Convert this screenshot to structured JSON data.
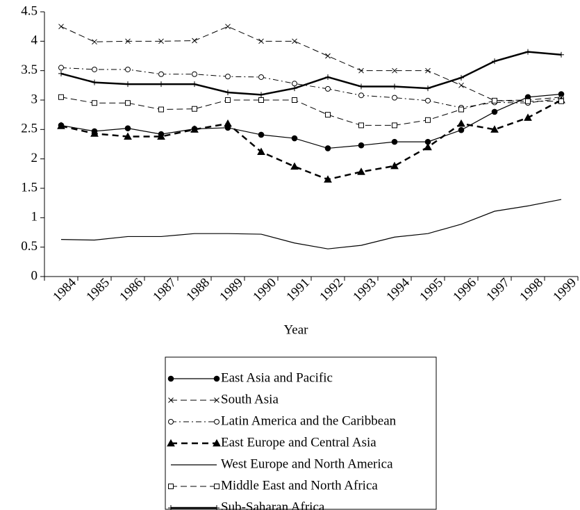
{
  "chart_data": {
    "type": "line",
    "x_label": "Year",
    "categories": [
      "1984",
      "1985",
      "1986",
      "1987",
      "1988",
      "1989",
      "1990",
      "1991",
      "1992",
      "1993",
      "1994",
      "1995",
      "1996",
      "1997",
      "1998",
      "1999"
    ],
    "ylim": [
      0,
      4.5
    ],
    "yticks": [
      0,
      0.5,
      1,
      1.5,
      2,
      2.5,
      3,
      3.5,
      4,
      4.5
    ],
    "series": [
      {
        "name": "East Asia and Pacific",
        "color": "#000000",
        "dash": "solid",
        "marker": "filled-circle",
        "line_width": 1.2,
        "values": [
          2.57,
          2.47,
          2.52,
          2.42,
          2.51,
          2.53,
          2.41,
          2.35,
          2.18,
          2.23,
          2.29,
          2.29,
          2.49,
          2.8,
          3.05,
          3.1
        ]
      },
      {
        "name": "South Asia",
        "color": "#000000",
        "dash": "dashed",
        "marker": "x",
        "line_width": 1,
        "values": [
          4.25,
          3.99,
          4.0,
          4.0,
          4.01,
          4.25,
          4.0,
          4.0,
          3.75,
          3.5,
          3.5,
          3.5,
          3.25,
          2.99,
          3.0,
          3.05
        ]
      },
      {
        "name": "Latin America and the Caribbean",
        "color": "#000000",
        "dash": "dash-dot",
        "marker": "open-circle",
        "line_width": 1,
        "values": [
          3.55,
          3.52,
          3.52,
          3.44,
          3.44,
          3.4,
          3.39,
          3.28,
          3.19,
          3.08,
          3.04,
          2.99,
          2.87,
          2.96,
          2.95,
          3.03
        ]
      },
      {
        "name": "East Europe and Central Asia",
        "color": "#000000",
        "dash": "bold-dashed",
        "marker": "filled-triangle",
        "line_width": 2.5,
        "values": [
          2.56,
          2.43,
          2.38,
          2.38,
          2.5,
          2.6,
          2.12,
          1.87,
          1.65,
          1.78,
          1.88,
          2.2,
          2.6,
          2.5,
          2.7,
          3.0
        ]
      },
      {
        "name": "West Europe and North America",
        "color": "#000000",
        "dash": "solid",
        "marker": "none",
        "line_width": 1.2,
        "values": [
          0.63,
          0.62,
          0.68,
          0.68,
          0.73,
          0.73,
          0.72,
          0.57,
          0.47,
          0.53,
          0.67,
          0.73,
          0.89,
          1.11,
          1.2,
          1.31
        ]
      },
      {
        "name": "Middle East and North Africa",
        "color": "#000000",
        "dash": "dashed",
        "marker": "open-square",
        "line_width": 1,
        "values": [
          3.05,
          2.95,
          2.95,
          2.84,
          2.85,
          3.0,
          3.0,
          3.0,
          2.75,
          2.57,
          2.57,
          2.66,
          2.84,
          2.99,
          2.98,
          2.98
        ]
      },
      {
        "name": "Sub-Saharan Africa",
        "color": "#000000",
        "dash": "solid",
        "marker": "plus",
        "line_width": 2.5,
        "values": [
          3.45,
          3.3,
          3.27,
          3.27,
          3.27,
          3.13,
          3.09,
          3.2,
          3.39,
          3.23,
          3.23,
          3.2,
          3.38,
          3.66,
          3.82,
          3.77
        ]
      }
    ],
    "legend": "bottom-center"
  }
}
